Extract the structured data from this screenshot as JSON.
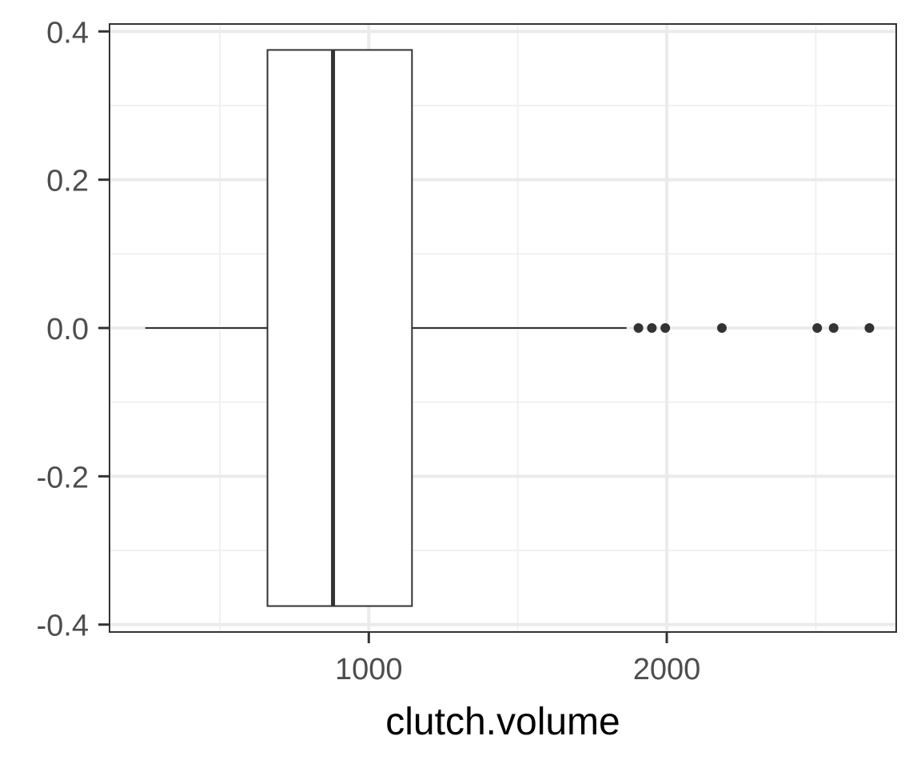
{
  "chart_data": {
    "type": "boxplot",
    "title": "",
    "xlabel": "clutch.volume",
    "ylabel": "",
    "xlim": [
      130,
      2770
    ],
    "ylim": [
      -0.41,
      0.41
    ],
    "x_ticks": [
      1000,
      2000
    ],
    "x_tick_labels": [
      "1000",
      "2000"
    ],
    "x_minor_ticks": [
      500,
      1500,
      2500
    ],
    "y_ticks": [
      0.4,
      0.2,
      0.0,
      -0.2,
      -0.4
    ],
    "y_tick_labels": [
      "0.4",
      "0.2",
      "0.0",
      "-0.2",
      "-0.4"
    ],
    "y_minor_ticks": [
      0.3,
      0.1,
      -0.1,
      -0.3
    ],
    "grid": true,
    "box": {
      "y": 0.0,
      "half_width": 0.375,
      "whisker_low": 250,
      "q1": 660,
      "median": 880,
      "q3": 1145,
      "whisker_high": 1865,
      "outliers": [
        1905,
        1950,
        1995,
        2185,
        2505,
        2560,
        2680
      ]
    },
    "colors": {
      "panel_border": "#333333",
      "grid_major": "#ebebeb",
      "grid_minor": "#f0f0f0",
      "box_stroke": "#333333",
      "box_fill": "#ffffff",
      "outlier": "#333333",
      "tick_text": "#4d4d4d",
      "title_text": "#000000"
    }
  }
}
